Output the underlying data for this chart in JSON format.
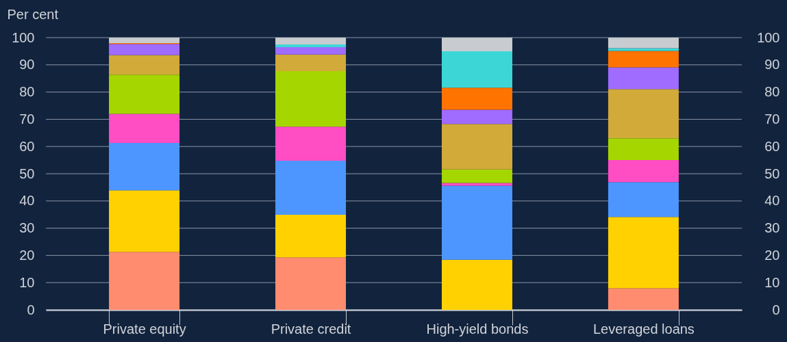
{
  "chart_data": {
    "type": "bar",
    "stacked": true,
    "ylabel": "Per cent",
    "categories": [
      "Private equity",
      "Private credit",
      "High-yield bonds",
      "Leveraged loans"
    ],
    "series": [
      {
        "color": "#ff8c6e",
        "values": [
          21.3,
          19.3,
          0,
          7.9
        ]
      },
      {
        "color": "#ffd100",
        "values": [
          22.6,
          15.6,
          18.4,
          26.2
        ]
      },
      {
        "color": "#4d96ff",
        "values": [
          17.4,
          19.9,
          27.2,
          12.8
        ]
      },
      {
        "color": "#ff4dc4",
        "values": [
          10.7,
          12.5,
          1.0,
          8.1
        ]
      },
      {
        "color": "#a6d600",
        "values": [
          14.4,
          20.4,
          5.0,
          8.0
        ]
      },
      {
        "color": "#d1aa3a",
        "values": [
          7.2,
          6.1,
          16.7,
          18.1
        ]
      },
      {
        "color": "#a06bff",
        "values": [
          4.1,
          2.7,
          5.2,
          8.0
        ]
      },
      {
        "color": "#ff7300",
        "values": [
          0.3,
          0,
          8.1,
          6.0
        ]
      },
      {
        "color": "#3dd6d6",
        "values": [
          0,
          1.0,
          13.4,
          1.0
        ]
      },
      {
        "color": "#c8ccd0",
        "values": [
          2.0,
          2.5,
          5.0,
          3.9
        ]
      }
    ],
    "ylim": [
      0,
      100
    ],
    "yticks": [
      0,
      10,
      20,
      30,
      40,
      50,
      60,
      70,
      80,
      90,
      100
    ],
    "y2lim": [
      0,
      100
    ],
    "y2ticks": [
      0,
      10,
      20,
      30,
      40,
      50,
      60,
      70,
      80,
      90,
      100
    ],
    "grid": "y"
  }
}
